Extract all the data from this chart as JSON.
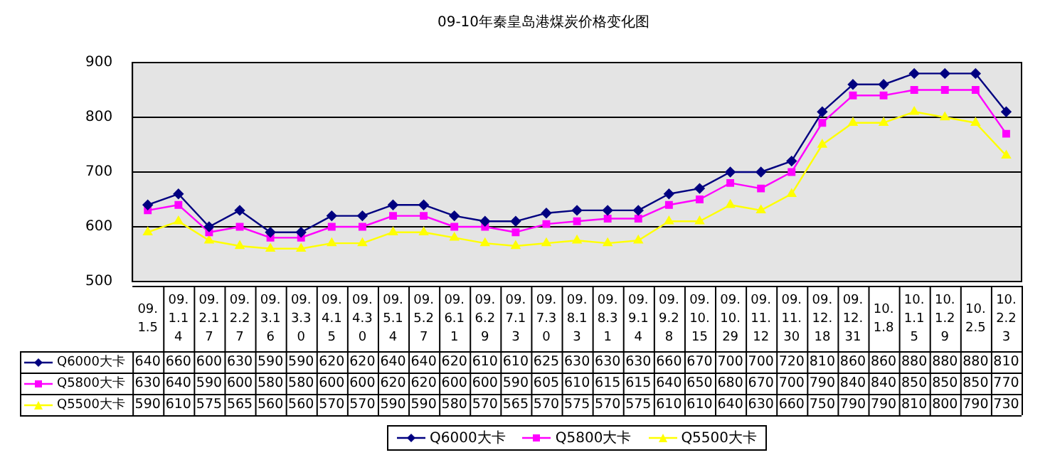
{
  "chart_data": {
    "type": "line",
    "title": "09-10年秦皇岛港煤炭价格变化图",
    "categories": [
      "09.1.5",
      "09.1.14",
      "09.2.17",
      "09.2.27",
      "09.3.16",
      "09.3.30",
      "09.4.15",
      "09.4.30",
      "09.5.14",
      "09.5.27",
      "09.6.11",
      "09.6.29",
      "09.7.13",
      "09.7.30",
      "09.8.13",
      "09.8.31",
      "09.9.14",
      "09.9.28",
      "09.10.15",
      "09.10.29",
      "09.11.12",
      "09.11.30",
      "09.12.18",
      "09.12.31",
      "10.1.8",
      "10.1.15",
      "10.1.29",
      "10.2.5",
      "10.2.23"
    ],
    "series": [
      {
        "name": "Q6000大卡",
        "color": "#000080",
        "marker": "diamond",
        "values": [
          640,
          660,
          600,
          630,
          590,
          590,
          620,
          620,
          640,
          640,
          620,
          610,
          610,
          625,
          630,
          630,
          630,
          660,
          670,
          700,
          700,
          720,
          810,
          860,
          860,
          880,
          880,
          880,
          810
        ]
      },
      {
        "name": "Q5800大卡",
        "color": "#ff00ff",
        "marker": "square",
        "values": [
          630,
          640,
          590,
          600,
          580,
          580,
          600,
          600,
          620,
          620,
          600,
          600,
          590,
          605,
          610,
          615,
          615,
          640,
          650,
          680,
          670,
          700,
          790,
          840,
          840,
          850,
          850,
          850,
          770
        ]
      },
      {
        "name": "Q5500大卡",
        "color": "#ffff00",
        "marker": "triangle",
        "values": [
          590,
          610,
          575,
          565,
          560,
          560,
          570,
          570,
          590,
          590,
          580,
          570,
          565,
          570,
          575,
          570,
          575,
          610,
          610,
          640,
          630,
          660,
          750,
          790,
          790,
          810,
          800,
          790,
          730
        ]
      }
    ],
    "ylim": [
      500,
      900
    ],
    "yticks": [
      500,
      600,
      700,
      800,
      900
    ],
    "grid": "y",
    "legend": "bottom",
    "data_labels": true,
    "line_style": "solid"
  }
}
